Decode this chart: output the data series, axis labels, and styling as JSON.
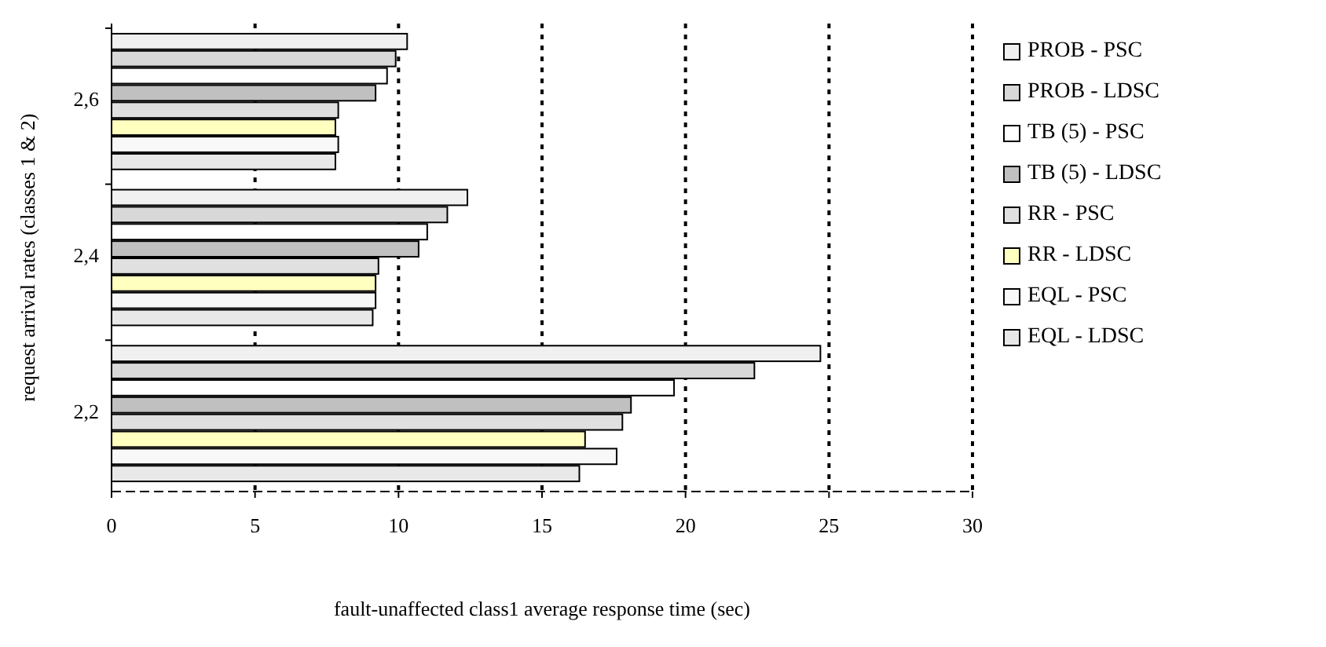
{
  "chart_data": {
    "type": "bar",
    "orientation": "horizontal",
    "xlabel": "fault-unaffected class1 average response time (sec)",
    "ylabel": "request arrival rates (classes 1 & 2)",
    "categories": [
      "2,6",
      "2,4",
      "2,2"
    ],
    "series": [
      {
        "name": "PROB - PSC",
        "color": "#f0f0f0",
        "values": [
          10.3,
          12.4,
          24.7
        ]
      },
      {
        "name": "PROB - LDSC",
        "color": "#d8d8d8",
        "values": [
          9.9,
          11.7,
          22.4
        ]
      },
      {
        "name": "TB (5) - PSC",
        "color": "#ffffff",
        "values": [
          9.6,
          11.0,
          19.6
        ]
      },
      {
        "name": "TB (5) - LDSC",
        "color": "#c0c0c0",
        "values": [
          9.2,
          10.7,
          18.1
        ]
      },
      {
        "name": "RR - PSC",
        "color": "#e0e0e0",
        "values": [
          7.9,
          9.3,
          17.8
        ]
      },
      {
        "name": "RR - LDSC",
        "color": "#ffffc0",
        "values": [
          7.8,
          9.2,
          16.5
        ]
      },
      {
        "name": "EQL - PSC",
        "color": "#f8f8f8",
        "values": [
          7.9,
          9.2,
          17.6
        ]
      },
      {
        "name": "EQL - LDSC",
        "color": "#e8e8e8",
        "values": [
          7.8,
          9.1,
          16.3
        ]
      }
    ],
    "xlim": [
      0,
      30
    ],
    "xticks": [
      0,
      5,
      10,
      15,
      20,
      25,
      30
    ],
    "grid": "x",
    "legend": "right"
  }
}
